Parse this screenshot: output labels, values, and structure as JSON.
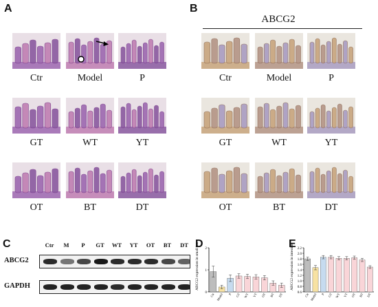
{
  "panels": {
    "A": {
      "label": "A",
      "stain": "he",
      "tiles": [
        {
          "caption": "Ctr"
        },
        {
          "caption": "Model"
        },
        {
          "caption": "P"
        },
        {
          "caption": "GT"
        },
        {
          "caption": "WT"
        },
        {
          "caption": "YT"
        },
        {
          "caption": "OT"
        },
        {
          "caption": "BT"
        },
        {
          "caption": "DT"
        }
      ]
    },
    "B": {
      "label": "B",
      "title": "ABCG2",
      "stain": "ihc",
      "tiles": [
        {
          "caption": "Ctr"
        },
        {
          "caption": "Model"
        },
        {
          "caption": "P"
        },
        {
          "caption": "GT"
        },
        {
          "caption": "WT"
        },
        {
          "caption": "YT"
        },
        {
          "caption": "OT"
        },
        {
          "caption": "BT"
        },
        {
          "caption": "DT"
        }
      ]
    },
    "C": {
      "label": "C",
      "lanes": [
        "Ctr",
        "M",
        "P",
        "GT",
        "WT",
        "YT",
        "OT",
        "BT",
        "DT"
      ],
      "rows": [
        {
          "label": "ABCG2",
          "intensity": [
            0.85,
            0.45,
            0.7,
            0.95,
            0.85,
            0.85,
            0.85,
            0.7,
            0.55
          ]
        },
        {
          "label": "GAPDH",
          "intensity": [
            0.9,
            0.9,
            0.9,
            0.9,
            0.85,
            0.9,
            0.9,
            0.9,
            0.9
          ]
        }
      ]
    },
    "D": {
      "label": "D"
    },
    "E": {
      "label": "E"
    }
  },
  "chart_data": [
    {
      "type": "bar",
      "panel": "D",
      "ylabel": "ABCG2 expression in small intestine",
      "categories": [
        "Ctr",
        "Model",
        "P",
        "GT",
        "WT",
        "YT",
        "OT",
        "BT",
        "DT"
      ],
      "values": [
        0.92,
        0.22,
        0.62,
        0.72,
        0.7,
        0.68,
        0.64,
        0.4,
        0.3
      ],
      "errors": [
        0.25,
        0.08,
        0.15,
        0.1,
        0.1,
        0.1,
        0.1,
        0.1,
        0.1
      ],
      "ylim": [
        0,
        2.0
      ],
      "yticks": [
        "0",
        "1",
        "2"
      ],
      "colors": [
        "#bdbdbd",
        "#f7e2a3",
        "#c6dbef",
        "#f9d5d8",
        "#f9d5d8",
        "#f9d5d8",
        "#f9d5d8",
        "#f9d5d8",
        "#f9d5d8"
      ]
    },
    {
      "type": "bar",
      "panel": "E",
      "ylabel": "ABCG2 expression in intestine",
      "categories": [
        "Ctr",
        "Model",
        "P",
        "GT",
        "WT",
        "YT",
        "OT",
        "BT",
        "DT"
      ],
      "values": [
        1.8,
        1.48,
        1.86,
        1.86,
        1.82,
        1.82,
        1.84,
        1.76,
        1.5
      ],
      "errors": [
        0.06,
        0.08,
        0.06,
        0.06,
        0.06,
        0.06,
        0.06,
        0.06,
        0.05
      ],
      "ylim": [
        0.6,
        2.2
      ],
      "yticks": [
        "0.6",
        "0.8",
        "1.0",
        "1.2",
        "1.4",
        "1.6",
        "1.8",
        "2.0",
        "2.2"
      ],
      "colors": [
        "#bdbdbd",
        "#f7e2a3",
        "#c6dbef",
        "#f9d5d8",
        "#f9d5d8",
        "#f9d5d8",
        "#f9d5d8",
        "#f9d5d8",
        "#f9d5d8"
      ]
    }
  ]
}
